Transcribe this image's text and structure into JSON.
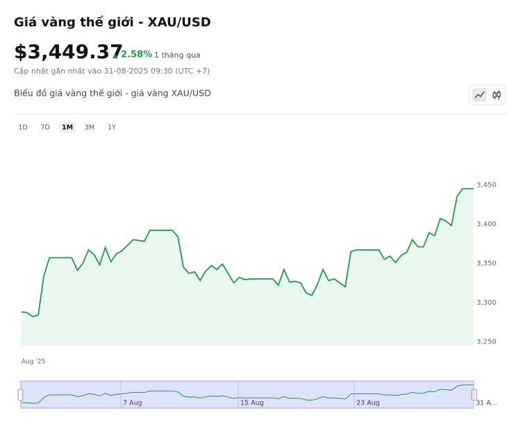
{
  "header": {
    "title": "Giá vàng thế giới - XAU/USD",
    "price": "$3,449.37",
    "change": "2.58%",
    "period": "1 tháng qua",
    "updated": "Cập nhật gần nhất vào 31-08-2025 09:30 (UTC +7)",
    "chart_heading": "Biểu đồ giá vàng thế giới - giá vàng XAU/USD"
  },
  "ranges": {
    "options": [
      "1D",
      "7D",
      "1M",
      "3M",
      "1Y"
    ],
    "selected": "1M"
  },
  "chart_data": {
    "type": "line",
    "color": "#1a9a4e",
    "fill": "#eaf7ee",
    "grid": false,
    "x_label": "Aug '25",
    "navigator_labels": [
      "7 Aug",
      "15 Aug",
      "23 Aug",
      "31 A..."
    ],
    "ylim": [
      3245,
      3475
    ],
    "yticks": [
      {
        "value": 3250,
        "label": "3,250"
      },
      {
        "value": 3300,
        "label": "3,300"
      },
      {
        "value": 3350,
        "label": "3,350"
      },
      {
        "value": 3400,
        "label": "3,400"
      },
      {
        "value": 3450,
        "label": "3,450"
      }
    ],
    "values": [
      3288,
      3287,
      3282,
      3284,
      3334,
      3357,
      3357,
      3357,
      3357,
      3357,
      3341,
      3350,
      3367,
      3361,
      3348,
      3370,
      3352,
      3362,
      3366,
      3373,
      3380,
      3379,
      3378,
      3392,
      3392,
      3392,
      3392,
      3392,
      3384,
      3345,
      3337,
      3339,
      3328,
      3340,
      3347,
      3342,
      3349,
      3337,
      3325,
      3332,
      3329,
      3330,
      3330,
      3330,
      3330,
      3330,
      3322,
      3342,
      3326,
      3327,
      3325,
      3312,
      3309,
      3323,
      3342,
      3328,
      3330,
      3325,
      3320,
      3365,
      3367,
      3367,
      3367,
      3367,
      3367,
      3355,
      3359,
      3351,
      3360,
      3364,
      3380,
      3371,
      3371,
      3389,
      3385,
      3407,
      3404,
      3398,
      3435,
      3445,
      3445,
      3445
    ]
  }
}
